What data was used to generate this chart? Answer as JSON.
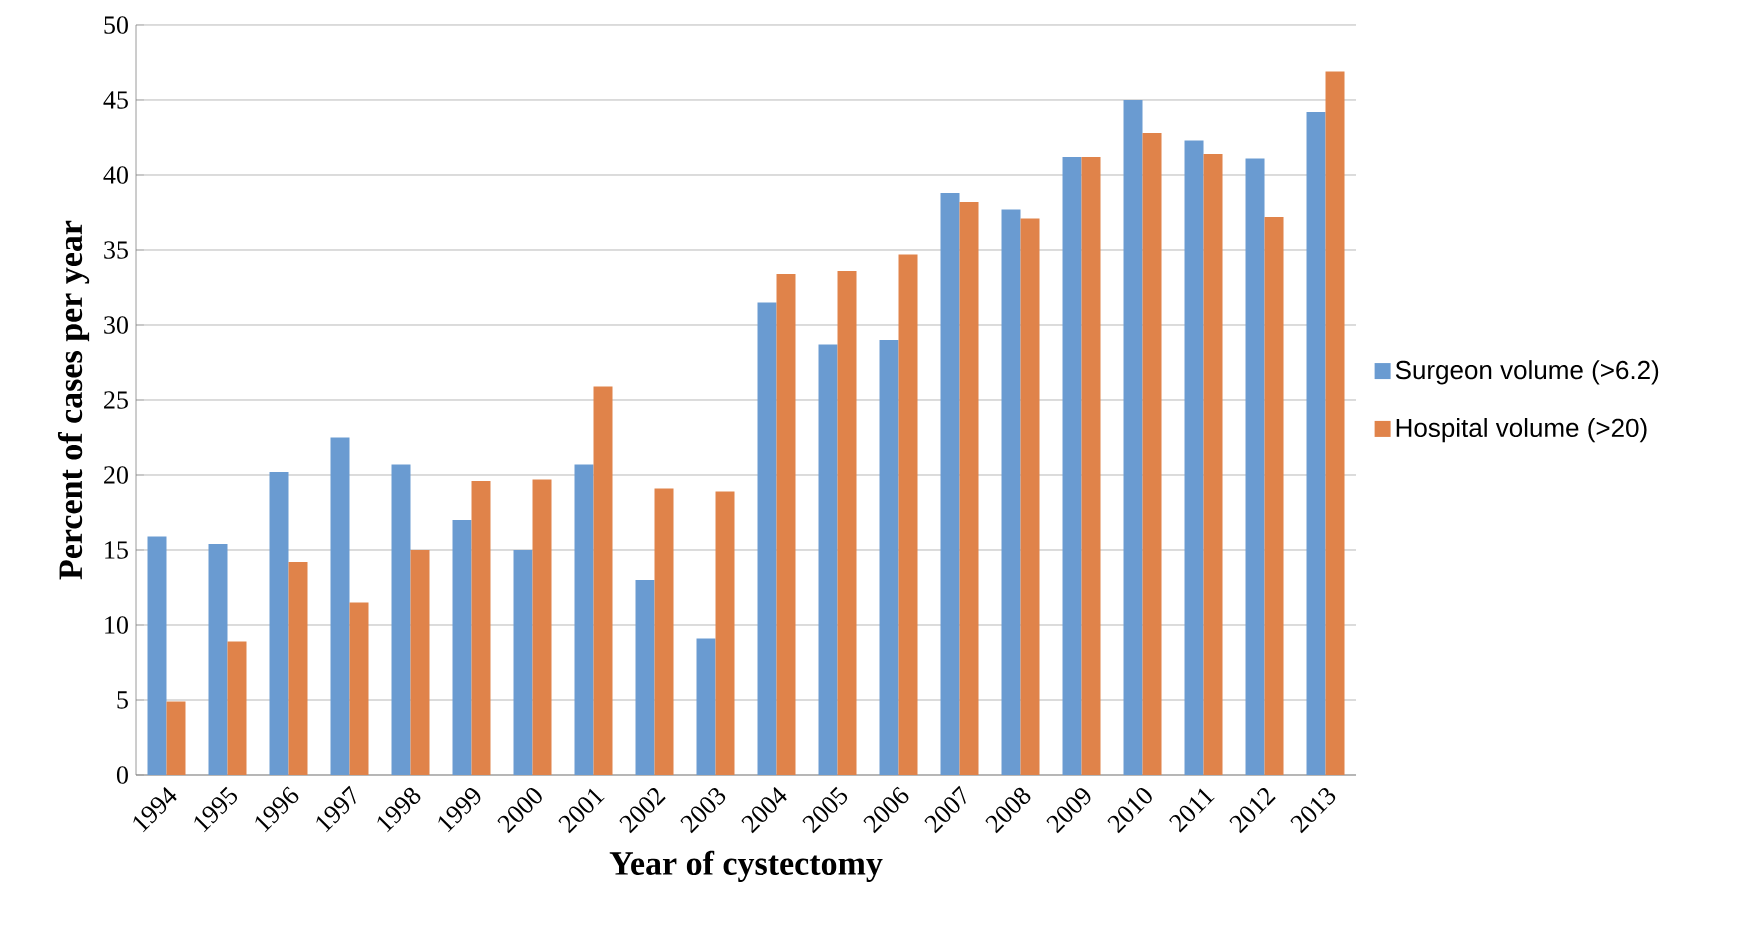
{
  "chart_data": {
    "type": "bar",
    "xlabel": "Year of cystectomy",
    "ylabel": "Percent of cases per year",
    "categories": [
      "1994",
      "1995",
      "1996",
      "1997",
      "1998",
      "1999",
      "2000",
      "2001",
      "2002",
      "2003",
      "2004",
      "2005",
      "2006",
      "2007",
      "2008",
      "2009",
      "2010",
      "2011",
      "2012",
      "2013"
    ],
    "series": [
      {
        "name": "Surgeon volume (>6.2)",
        "color": "#6a9bd1",
        "values": [
          15.9,
          15.4,
          20.2,
          22.5,
          20.7,
          17.0,
          15.0,
          20.7,
          13.0,
          9.1,
          31.5,
          28.7,
          29.0,
          38.8,
          37.7,
          41.2,
          45.0,
          42.3,
          41.1,
          44.2
        ]
      },
      {
        "name": "Hospital volume (>20)",
        "color": "#e0834a",
        "values": [
          4.9,
          8.9,
          14.2,
          11.5,
          15.0,
          19.6,
          19.7,
          25.9,
          19.1,
          18.9,
          33.4,
          33.6,
          34.7,
          38.2,
          37.1,
          41.2,
          42.8,
          41.4,
          37.2,
          46.9
        ]
      }
    ],
    "ylim": [
      0,
      50
    ],
    "yticks": [
      0,
      5,
      10,
      15,
      20,
      25,
      30,
      35,
      40,
      45,
      50
    ],
    "grid": "y",
    "legend": "right"
  }
}
